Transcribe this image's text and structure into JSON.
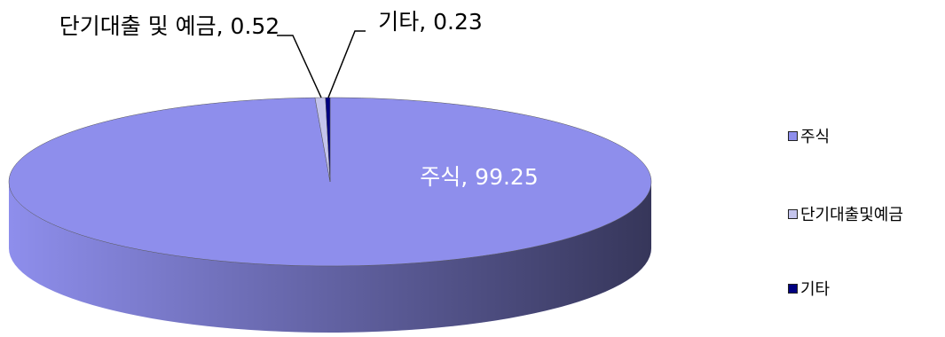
{
  "chart_data": {
    "type": "pie3d",
    "categories": [
      "주식",
      "단기대출및예금",
      "기타"
    ],
    "values": [
      99.25,
      0.52,
      0.23
    ],
    "value_labels": [
      "주식, 99.25",
      "단기대출 및 예금, 0.52",
      "기타, 0.23"
    ],
    "colors": [
      "#8e8eec",
      "#c4c4ec",
      "#000080"
    ],
    "legend": "right"
  }
}
